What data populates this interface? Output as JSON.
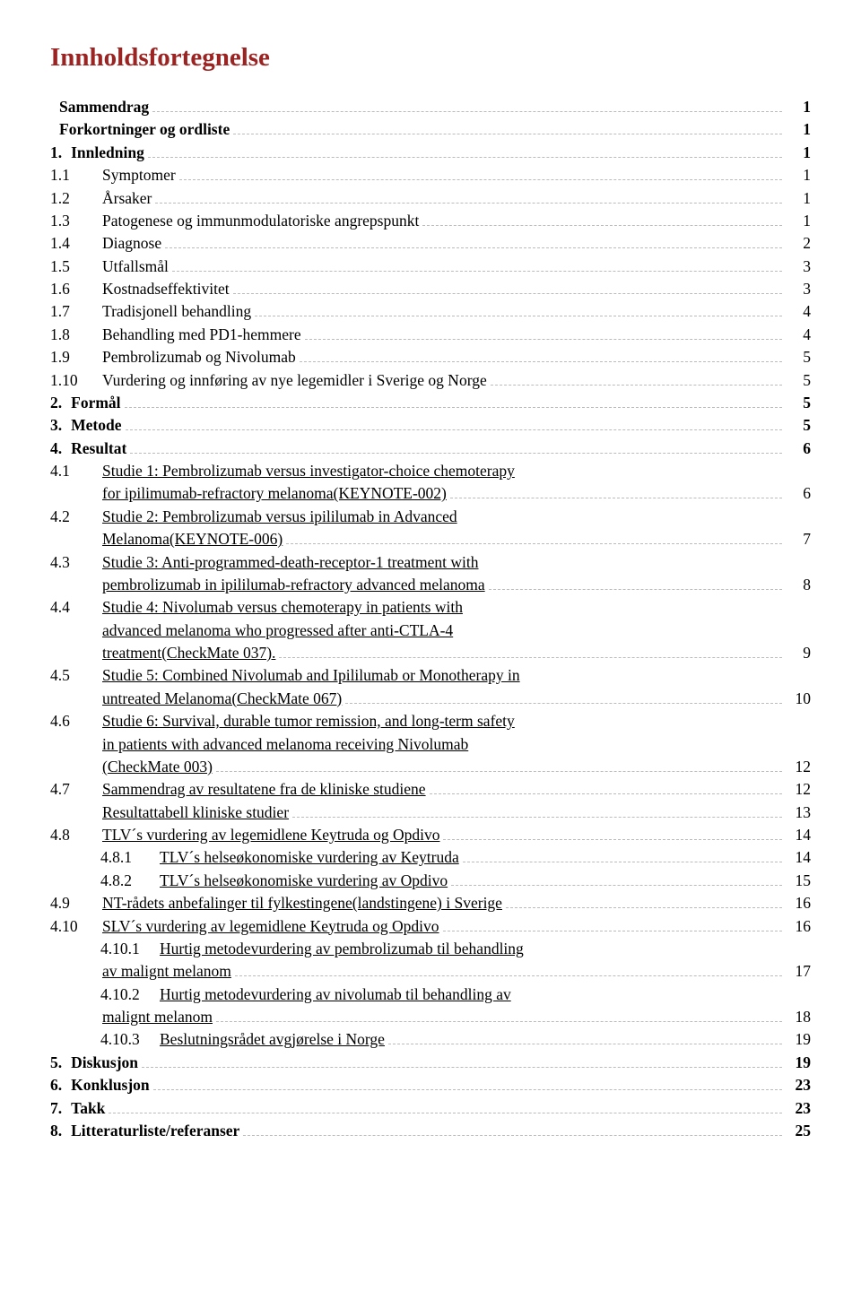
{
  "title": "Innholdsfortegnelse",
  "colors": {
    "title": "#9b2423",
    "text": "#000000",
    "leader": "#bbbbbb",
    "background": "#ffffff"
  },
  "typography": {
    "title_fontsize_pt": 22,
    "body_fontsize_pt": 13,
    "font_family": "Georgia / serif"
  },
  "entries": [
    {
      "num": "",
      "label": "Sammendrag",
      "page": "1",
      "bold": true,
      "indent": 0,
      "underline": false
    },
    {
      "num": "",
      "label": "Forkortninger og ordliste",
      "page": "1",
      "bold": true,
      "indent": 0,
      "underline": false
    },
    {
      "num": "1.",
      "label": "Innledning",
      "page": "1",
      "bold": true,
      "indent": 0,
      "underline": false
    },
    {
      "num": "1.1",
      "label": "Symptomer",
      "page": "1",
      "bold": false,
      "indent": 1,
      "underline": false
    },
    {
      "num": "1.2",
      "label": "Årsaker",
      "page": "1",
      "bold": false,
      "indent": 1,
      "underline": false
    },
    {
      "num": "1.3",
      "label": "Patogenese og immunmodulatoriske angrepspunkt",
      "page": "1",
      "bold": false,
      "indent": 1,
      "underline": false
    },
    {
      "num": "1.4",
      "label": "Diagnose",
      "page": "2",
      "bold": false,
      "indent": 1,
      "underline": false
    },
    {
      "num": "1.5",
      "label": "Utfallsmål",
      "page": "3",
      "bold": false,
      "indent": 1,
      "underline": false
    },
    {
      "num": "1.6",
      "label": "Kostnadseffektivitet",
      "page": "3",
      "bold": false,
      "indent": 1,
      "underline": false
    },
    {
      "num": "1.7",
      "label": "Tradisjonell behandling",
      "page": "4",
      "bold": false,
      "indent": 1,
      "underline": false
    },
    {
      "num": "1.8",
      "label": "Behandling med PD1-hemmere",
      "page": "4",
      "bold": false,
      "indent": 1,
      "underline": false
    },
    {
      "num": "1.9",
      "label": "Pembrolizumab og Nivolumab",
      "page": "5",
      "bold": false,
      "indent": 1,
      "underline": false
    },
    {
      "num": "1.10",
      "label": "Vurdering og innføring av nye legemidler i Sverige og Norge",
      "page": "5",
      "bold": false,
      "indent": 1,
      "underline": false
    },
    {
      "num": "2.",
      "label": "Formål",
      "page": "5",
      "bold": true,
      "indent": 0,
      "underline": false
    },
    {
      "num": "3.",
      "label": "Metode",
      "page": "5",
      "bold": true,
      "indent": 0,
      "underline": false
    },
    {
      "num": "4.",
      "label": "Resultat",
      "page": "6",
      "bold": true,
      "indent": 0,
      "underline": false
    },
    {
      "num": "4.1",
      "label": "Studie 1: Pembrolizumab versus investigator-choice chemoterapy",
      "cont": "for ipilimumab-refractory melanoma(KEYNOTE-002)",
      "page": "6",
      "bold": false,
      "indent": 1,
      "underline": true
    },
    {
      "num": "4.2",
      "label": "Studie 2: Pembrolizumab versus ipililumab in Advanced",
      "cont": "Melanoma(KEYNOTE-006)",
      "page": "7",
      "bold": false,
      "indent": 1,
      "underline": true
    },
    {
      "num": "4.3",
      "label": "Studie 3: Anti-programmed-death-receptor-1 treatment with",
      "cont": "pembrolizumab in ipililumab-refractory advanced melanoma",
      "page": "8",
      "bold": false,
      "indent": 1,
      "underline": true
    },
    {
      "num": "4.4",
      "label": "Studie 4: Nivolumab versus chemoterapy in patients with",
      "cont": "advanced melanoma who progressed after anti-CTLA-4",
      "cont2": "treatment(CheckMate 037).",
      "page": "9",
      "bold": false,
      "indent": 1,
      "underline": true
    },
    {
      "num": "4.5",
      "label": "Studie 5: Combined Nivolumab and Ipililumab or Monotherapy in",
      "cont": "untreated Melanoma(CheckMate 067)",
      "page": "10",
      "bold": false,
      "indent": 1,
      "underline": true
    },
    {
      "num": "4.6",
      "label": "Studie 6: Survival, durable tumor remission, and long-term safety",
      "cont": "in patients with advanced melanoma receiving Nivolumab",
      "cont2": "(CheckMate 003)",
      "page": "12",
      "bold": false,
      "indent": 1,
      "underline": true
    },
    {
      "num": "4.7",
      "label": "Sammendrag av resultatene fra de kliniske studiene",
      "page": "12",
      "bold": false,
      "indent": 1,
      "underline": true
    },
    {
      "num": "",
      "label": "Resultattabell kliniske studier",
      "page": "13",
      "bold": false,
      "indent": 1,
      "underline": true,
      "nonum_align": true
    },
    {
      "num": "4.8",
      "label": "TLV´s vurdering av legemidlene Keytruda og Opdivo",
      "page": "14",
      "bold": false,
      "indent": 1,
      "underline": true
    },
    {
      "num": "4.8.1",
      "label": "TLV´s helseøkonomiske vurdering av Keytruda",
      "page": "14",
      "bold": false,
      "indent": 2,
      "underline": true
    },
    {
      "num": "4.8.2",
      "label": "TLV´s helseøkonomiske vurdering av Opdivo",
      "page": "15",
      "bold": false,
      "indent": 2,
      "underline": true
    },
    {
      "num": "4.9",
      "label": "NT-rådets anbefalinger til fylkestingene(landstingene) i Sverige",
      "page": "16",
      "bold": false,
      "indent": 1,
      "underline": true
    },
    {
      "num": "4.10",
      "label": "SLV´s vurdering av legemidlene Keytruda og Opdivo",
      "page": "16",
      "bold": false,
      "indent": 1,
      "underline": true
    },
    {
      "num": "4.10.1",
      "label": "Hurtig metodevurdering av pembrolizumab til behandling",
      "cont": "av malignt melanom",
      "page": "17",
      "bold": false,
      "indent": 2,
      "underline": true,
      "cont_outdent": true
    },
    {
      "num": "4.10.2",
      "label": "Hurtig metodevurdering av nivolumab til behandling av",
      "cont": "malignt melanom",
      "page": "18",
      "bold": false,
      "indent": 2,
      "underline": true,
      "cont_outdent": true
    },
    {
      "num": "4.10.3",
      "label": "Beslutningsrådet avgjørelse i Norge",
      "page": "19",
      "bold": false,
      "indent": 2,
      "underline": true
    },
    {
      "num": "5.",
      "label": "Diskusjon",
      "page": "19",
      "bold": true,
      "indent": 0,
      "underline": false
    },
    {
      "num": "6.",
      "label": "Konklusjon",
      "page": "23",
      "bold": true,
      "indent": 0,
      "underline": false
    },
    {
      "num": "7.",
      "label": "Takk",
      "page": "23",
      "bold": true,
      "indent": 0,
      "underline": false
    },
    {
      "num": "8.",
      "label": "Litteraturliste/referanser",
      "page": "25",
      "bold": true,
      "indent": 0,
      "underline": false
    }
  ]
}
